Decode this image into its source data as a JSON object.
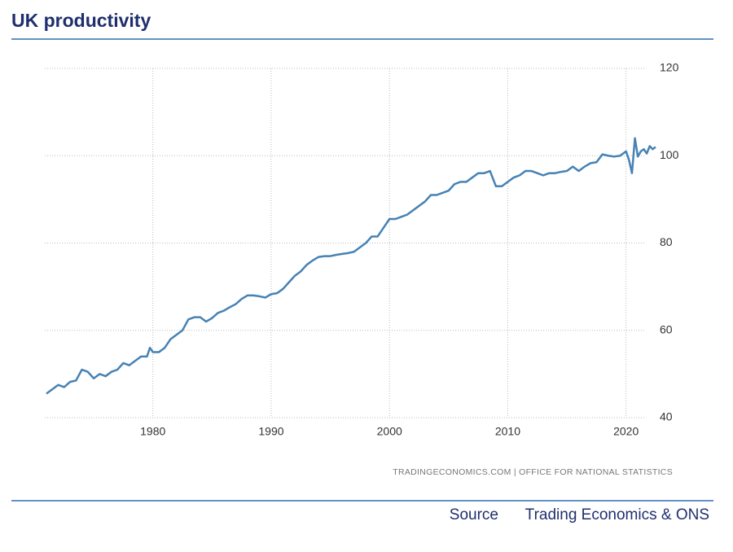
{
  "chart_data": {
    "type": "line",
    "title": "UK productivity",
    "source_note": "TRADINGECONOMICS.COM | OFFICE FOR NATIONAL STATISTICS",
    "footer_label": "Source",
    "footer_text": "Trading Economics & ONS",
    "color": "#4682b4",
    "grid": true,
    "xlim": [
      1971,
      2022.5
    ],
    "xticks": [
      1980,
      1990,
      2000,
      2010,
      2020
    ],
    "ylim": [
      40,
      120
    ],
    "yticks": [
      40,
      60,
      80,
      100,
      120
    ],
    "x": [
      1971,
      1972,
      1972.5,
      1973,
      1973.5,
      1974,
      1974.5,
      1975,
      1975.5,
      1976,
      1976.5,
      1977,
      1977.5,
      1978,
      1978.5,
      1979,
      1979.5,
      1979.75,
      1980,
      1980.5,
      1981,
      1981.5,
      1982,
      1982.5,
      1983,
      1983.5,
      1984,
      1984.5,
      1985,
      1985.5,
      1986,
      1986.5,
      1987,
      1987.5,
      1988,
      1988.5,
      1989,
      1989.5,
      1990,
      1990.5,
      1991,
      1991.5,
      1992,
      1992.5,
      1993,
      1993.5,
      1994,
      1994.5,
      1995,
      1995.5,
      1996,
      1996.5,
      1997,
      1997.5,
      1998,
      1998.5,
      1999,
      1999.5,
      2000,
      2000.5,
      2001,
      2001.5,
      2002,
      2002.5,
      2003,
      2003.5,
      2004,
      2004.5,
      2005,
      2005.5,
      2006,
      2006.5,
      2007,
      2007.5,
      2008,
      2008.5,
      2009,
      2009.5,
      2010,
      2010.5,
      2011,
      2011.5,
      2012,
      2012.5,
      2013,
      2013.5,
      2014,
      2014.5,
      2015,
      2015.5,
      2016,
      2016.5,
      2017,
      2017.5,
      2018,
      2018.5,
      2019,
      2019.5,
      2020,
      2020.25,
      2020.5,
      2020.75,
      2021,
      2021.25,
      2021.5,
      2021.75,
      2022,
      2022.25,
      2022.5
    ],
    "values": [
      45.5,
      47.5,
      47,
      48.2,
      48.5,
      51,
      50.5,
      49,
      50,
      49.5,
      50.5,
      51,
      52.5,
      52,
      53,
      54,
      54,
      56,
      55,
      55,
      56,
      58,
      59,
      60,
      62.5,
      63,
      63,
      62,
      62.8,
      64,
      64.5,
      65.3,
      66,
      67.2,
      68,
      68,
      67.8,
      67.5,
      68.3,
      68.5,
      69.5,
      71,
      72.5,
      73.5,
      75,
      76,
      76.8,
      77,
      77,
      77.3,
      77.5,
      77.7,
      78,
      79,
      80,
      81.5,
      81.5,
      83.5,
      85.5,
      85.5,
      86,
      86.5,
      87.5,
      88.5,
      89.5,
      91,
      91,
      91.5,
      92,
      93.5,
      94,
      94,
      95,
      96,
      96,
      96.5,
      93,
      93,
      94,
      95,
      95.5,
      96.5,
      96.5,
      96,
      95.5,
      96,
      96,
      96.3,
      96.5,
      97.5,
      96.5,
      97.5,
      98.3,
      98.5,
      100.3,
      100,
      99.8,
      100,
      101,
      99,
      96,
      104,
      99.8,
      101,
      101.5,
      100.5,
      102.2,
      101.5,
      102
    ]
  }
}
